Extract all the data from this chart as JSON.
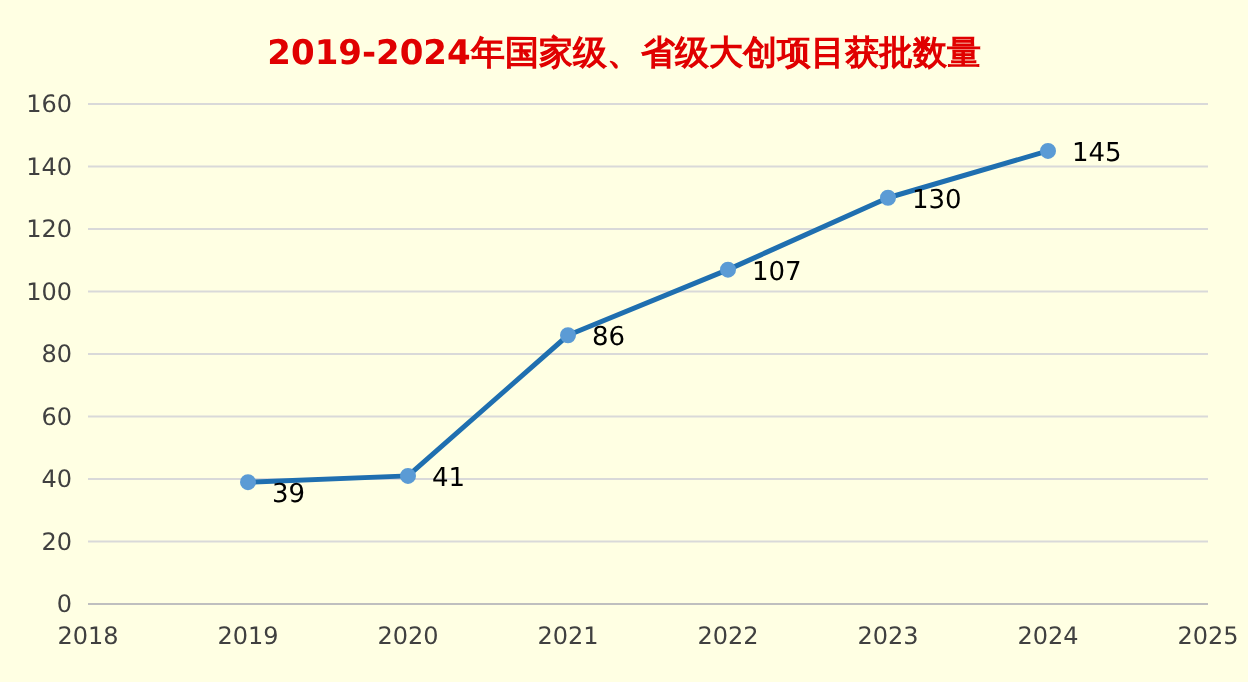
{
  "chart_data": {
    "type": "line",
    "title": "2019-2024年国家级、省级大创项目获批数量",
    "x": [
      2019,
      2020,
      2021,
      2022,
      2023,
      2024
    ],
    "series": [
      {
        "color": "#1f6fb0",
        "values": [
          39,
          41,
          86,
          107,
          130,
          145
        ]
      }
    ],
    "xlim": [
      2018,
      2025
    ],
    "xticks": [
      2018,
      2019,
      2020,
      2021,
      2022,
      2023,
      2024,
      2025
    ],
    "ylim": [
      0,
      160
    ],
    "yticks": [
      0,
      20,
      40,
      60,
      80,
      100,
      120,
      140,
      160
    ],
    "grid": "y",
    "marker": "circle",
    "line_style": "solid",
    "data_labels": true
  }
}
